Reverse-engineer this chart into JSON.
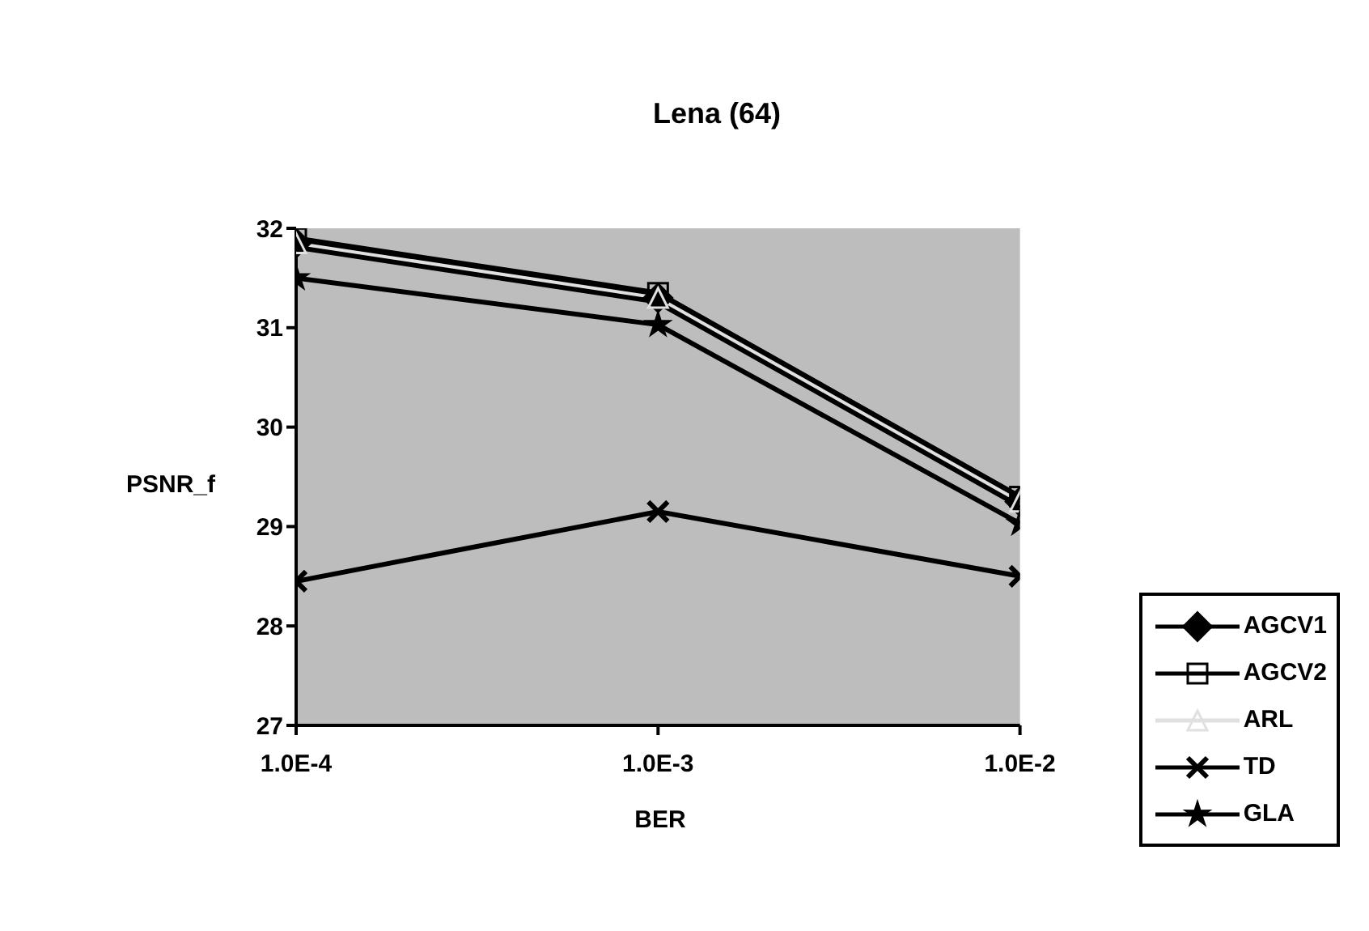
{
  "chart_data": {
    "type": "line",
    "title": "Lena (64)",
    "xlabel": "BER",
    "ylabel": "PSNR_f",
    "categories": [
      "1.0E-4",
      "1.0E-3",
      "1.0E-2"
    ],
    "ylim": [
      27,
      32
    ],
    "yticks": [
      27,
      28,
      29,
      30,
      31,
      32
    ],
    "grid": false,
    "legend": "right",
    "series": [
      {
        "name": "AGCV1",
        "color": "#000000",
        "marker": "diamond",
        "values": [
          31.85,
          31.3,
          29.25
        ]
      },
      {
        "name": "AGCV2",
        "color": "#000000",
        "marker": "square",
        "values": [
          31.9,
          31.35,
          29.3
        ]
      },
      {
        "name": "ARL",
        "color": "#e0e0e0",
        "marker": "triangle",
        "values": [
          31.85,
          31.3,
          29.25
        ]
      },
      {
        "name": "TD",
        "color": "#000000",
        "marker": "cross",
        "values": [
          28.45,
          29.15,
          28.5
        ]
      },
      {
        "name": "GLA",
        "color": "#000000",
        "marker": "star",
        "values": [
          31.5,
          31.03,
          29.03
        ]
      }
    ]
  }
}
